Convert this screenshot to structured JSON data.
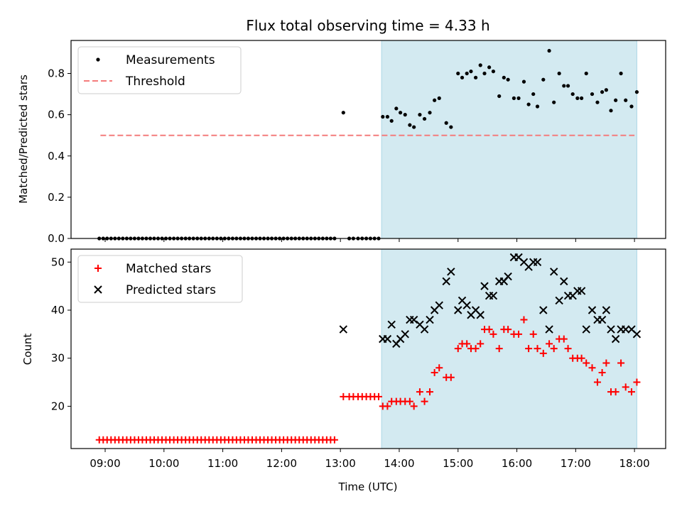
{
  "chart_data": [
    {
      "type": "scatter",
      "title": "Flux total observing time = 4.33 h",
      "xlabel": "",
      "ylabel": "Matched/Predicted stars",
      "xlim": [
        8.42,
        18.53
      ],
      "ylim": [
        0,
        0.96
      ],
      "xticks": [
        9,
        10,
        11,
        12,
        13,
        14,
        15,
        16,
        17,
        18
      ],
      "yticks": [
        0.0,
        0.2,
        0.4,
        0.6,
        0.8
      ],
      "ytick_labels": [
        "0.0",
        "0.2",
        "0.4",
        "0.6",
        "0.8"
      ],
      "shaded_span": [
        13.7,
        18.04
      ],
      "shaded_color": "#d3eaf1",
      "legend_position": "upper left",
      "legend": [
        {
          "label": "Measurements",
          "marker": "dot",
          "color": "#000000"
        },
        {
          "label": "Threshold",
          "marker": "dashed-line",
          "color": "#f47c7c"
        }
      ],
      "threshold": {
        "value": 0.5,
        "x_range": [
          8.92,
          18.0
        ]
      },
      "series": [
        {
          "name": "Measurements",
          "color": "#000000",
          "x": [
            8.9,
            8.967,
            9.033,
            9.1,
            9.167,
            9.233,
            9.3,
            9.367,
            9.433,
            9.5,
            9.567,
            9.633,
            9.7,
            9.767,
            9.833,
            9.9,
            9.967,
            10.033,
            10.1,
            10.167,
            10.233,
            10.3,
            10.367,
            10.433,
            10.5,
            10.567,
            10.633,
            10.7,
            10.767,
            10.833,
            10.9,
            10.967,
            11.033,
            11.1,
            11.167,
            11.233,
            11.3,
            11.367,
            11.433,
            11.5,
            11.567,
            11.633,
            11.7,
            11.767,
            11.833,
            11.9,
            11.967,
            12.033,
            12.1,
            12.167,
            12.233,
            12.3,
            12.367,
            12.433,
            12.5,
            12.567,
            12.633,
            12.7,
            12.767,
            12.833,
            12.9,
            13.05,
            13.15,
            13.22,
            13.3,
            13.37,
            13.44,
            13.51,
            13.58,
            13.65,
            13.72,
            13.8,
            13.87,
            13.95,
            14.02,
            14.1,
            14.18,
            14.25,
            14.35,
            14.43,
            14.52,
            14.6,
            14.68,
            14.8,
            14.88,
            15.0,
            15.07,
            15.15,
            15.22,
            15.3,
            15.38,
            15.45,
            15.53,
            15.6,
            15.7,
            15.78,
            15.85,
            15.95,
            16.03,
            16.12,
            16.2,
            16.28,
            16.35,
            16.45,
            16.55,
            16.63,
            16.72,
            16.8,
            16.87,
            16.95,
            17.03,
            17.1,
            17.18,
            17.28,
            17.37,
            17.45,
            17.52,
            17.6,
            17.68,
            17.77,
            17.85,
            17.95,
            18.04
          ],
          "y": [
            0,
            0,
            0,
            0,
            0,
            0,
            0,
            0,
            0,
            0,
            0,
            0,
            0,
            0,
            0,
            0,
            0,
            0,
            0,
            0,
            0,
            0,
            0,
            0,
            0,
            0,
            0,
            0,
            0,
            0,
            0,
            0,
            0,
            0,
            0,
            0,
            0,
            0,
            0,
            0,
            0,
            0,
            0,
            0,
            0,
            0,
            0,
            0,
            0,
            0,
            0,
            0,
            0,
            0,
            0,
            0,
            0,
            0,
            0,
            0,
            0,
            0.61,
            0,
            0,
            0,
            0,
            0,
            0,
            0,
            0,
            0.59,
            0.59,
            0.57,
            0.63,
            0.61,
            0.6,
            0.55,
            0.54,
            0.6,
            0.58,
            0.61,
            0.67,
            0.68,
            0.56,
            0.54,
            0.8,
            0.78,
            0.8,
            0.81,
            0.78,
            0.84,
            0.8,
            0.83,
            0.81,
            0.69,
            0.78,
            0.77,
            0.68,
            0.68,
            0.76,
            0.65,
            0.7,
            0.64,
            0.77,
            0.91,
            0.66,
            0.8,
            0.74,
            0.74,
            0.7,
            0.68,
            0.68,
            0.8,
            0.7,
            0.66,
            0.71,
            0.72,
            0.62,
            0.67,
            0.8,
            0.67,
            0.64,
            0.71
          ]
        }
      ]
    },
    {
      "type": "scatter",
      "title": "",
      "xlabel": "Time (UTC)",
      "ylabel": "Count",
      "xlim": [
        8.42,
        18.53
      ],
      "ylim": [
        11.2,
        52.7
      ],
      "xticks": [
        9,
        10,
        11,
        12,
        13,
        14,
        15,
        16,
        17,
        18
      ],
      "xtick_labels": [
        "09:00",
        "10:00",
        "11:00",
        "12:00",
        "13:00",
        "14:00",
        "15:00",
        "16:00",
        "17:00",
        "18:00"
      ],
      "yticks": [
        20,
        30,
        40,
        50
      ],
      "ytick_labels": [
        "20",
        "30",
        "40",
        "50"
      ],
      "shaded_span": [
        13.7,
        18.04
      ],
      "shaded_color": "#d3eaf1",
      "legend_position": "upper left",
      "legend": [
        {
          "label": "Matched stars",
          "marker": "plus",
          "color": "#ff0000"
        },
        {
          "label": "Predicted stars",
          "marker": "x",
          "color": "#000000"
        }
      ],
      "series": [
        {
          "name": "Matched stars",
          "marker": "plus",
          "color": "#ff0000",
          "x": [
            8.9,
            8.967,
            9.033,
            9.1,
            9.167,
            9.233,
            9.3,
            9.367,
            9.433,
            9.5,
            9.567,
            9.633,
            9.7,
            9.767,
            9.833,
            9.9,
            9.967,
            10.033,
            10.1,
            10.167,
            10.233,
            10.3,
            10.367,
            10.433,
            10.5,
            10.567,
            10.633,
            10.7,
            10.767,
            10.833,
            10.9,
            10.967,
            11.033,
            11.1,
            11.167,
            11.233,
            11.3,
            11.367,
            11.433,
            11.5,
            11.567,
            11.633,
            11.7,
            11.767,
            11.833,
            11.9,
            11.967,
            12.033,
            12.1,
            12.167,
            12.233,
            12.3,
            12.367,
            12.433,
            12.5,
            12.567,
            12.633,
            12.7,
            12.767,
            12.833,
            12.9,
            13.05,
            13.15,
            13.22,
            13.3,
            13.37,
            13.44,
            13.51,
            13.58,
            13.65,
            13.72,
            13.8,
            13.87,
            13.95,
            14.02,
            14.1,
            14.18,
            14.25,
            14.35,
            14.43,
            14.52,
            14.6,
            14.68,
            14.8,
            14.88,
            15.0,
            15.07,
            15.15,
            15.22,
            15.3,
            15.38,
            15.45,
            15.53,
            15.6,
            15.7,
            15.78,
            15.85,
            15.95,
            16.03,
            16.12,
            16.2,
            16.28,
            16.35,
            16.45,
            16.55,
            16.63,
            16.72,
            16.8,
            16.87,
            16.95,
            17.03,
            17.1,
            17.18,
            17.28,
            17.37,
            17.45,
            17.52,
            17.6,
            17.68,
            17.77,
            17.85,
            17.95,
            18.04
          ],
          "y": [
            13,
            13,
            13,
            13,
            13,
            13,
            13,
            13,
            13,
            13,
            13,
            13,
            13,
            13,
            13,
            13,
            13,
            13,
            13,
            13,
            13,
            13,
            13,
            13,
            13,
            13,
            13,
            13,
            13,
            13,
            13,
            13,
            13,
            13,
            13,
            13,
            13,
            13,
            13,
            13,
            13,
            13,
            13,
            13,
            13,
            13,
            13,
            13,
            13,
            13,
            13,
            13,
            13,
            13,
            13,
            13,
            13,
            13,
            13,
            13,
            13,
            22,
            22,
            22,
            22,
            22,
            22,
            22,
            22,
            22,
            20,
            20,
            21,
            21,
            21,
            21,
            21,
            20,
            23,
            21,
            23,
            27,
            28,
            26,
            26,
            32,
            33,
            33,
            32,
            32,
            33,
            36,
            36,
            35,
            32,
            36,
            36,
            35,
            35,
            38,
            32,
            35,
            32,
            31,
            33,
            32,
            34,
            34,
            32,
            30,
            30,
            30,
            29,
            28,
            25,
            27,
            29,
            23,
            23,
            29,
            24,
            23,
            25
          ]
        },
        {
          "name": "Predicted stars",
          "marker": "x",
          "color": "#000000",
          "x": [
            13.05,
            13.72,
            13.8,
            13.87,
            13.95,
            14.02,
            14.1,
            14.18,
            14.25,
            14.35,
            14.43,
            14.52,
            14.6,
            14.68,
            14.8,
            14.88,
            15.0,
            15.07,
            15.15,
            15.22,
            15.3,
            15.38,
            15.45,
            15.53,
            15.6,
            15.7,
            15.78,
            15.85,
            15.95,
            16.03,
            16.12,
            16.2,
            16.28,
            16.35,
            16.45,
            16.55,
            16.63,
            16.72,
            16.8,
            16.87,
            16.95,
            17.03,
            17.1,
            17.18,
            17.28,
            17.37,
            17.45,
            17.52,
            17.6,
            17.68,
            17.77,
            17.85,
            17.95,
            18.04
          ],
          "y": [
            36,
            34,
            34,
            37,
            33,
            34,
            35,
            38,
            38,
            37,
            36,
            38,
            40,
            41,
            46,
            48,
            40,
            42,
            41,
            39,
            40,
            39,
            45,
            43,
            43,
            46,
            46,
            47,
            51,
            51,
            50,
            49,
            50,
            50,
            40,
            36,
            48,
            42,
            46,
            43,
            43,
            44,
            44,
            36,
            40,
            38,
            38,
            40,
            36,
            34,
            36,
            36,
            36,
            35
          ]
        }
      ]
    }
  ]
}
